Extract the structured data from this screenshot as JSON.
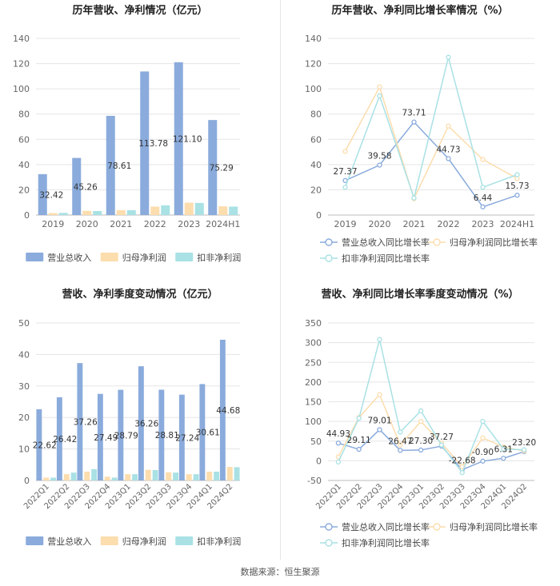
{
  "source": "数据来源：恒生聚源",
  "colors": {
    "revenue": "#8AABDC",
    "net_profit": "#FCDDAE",
    "deducted": "#A9E1E4",
    "grid": "#E5E5E5",
    "axis": "#BBBBBB",
    "tick": "#666666",
    "title": "#222222"
  },
  "chart_data": [
    {
      "type": "bar",
      "title": "历年营收、净利情况（亿元）",
      "categories": [
        "2019",
        "2020",
        "2021",
        "2022",
        "2023",
        "2024H1"
      ],
      "ylim": [
        0,
        140
      ],
      "yticks": [
        0,
        20,
        40,
        60,
        80,
        100,
        120,
        140
      ],
      "series": [
        {
          "name": "营业总收入",
          "values": [
            32.42,
            45.26,
            78.61,
            113.78,
            121.1,
            75.29
          ],
          "labels": [
            "32.42",
            "45.26",
            "78.61",
            "113.78",
            "121.10",
            "75.29"
          ]
        },
        {
          "name": "归母净利润",
          "values": [
            1.6,
            3.3,
            3.9,
            6.7,
            9.8,
            6.9
          ],
          "labels": []
        },
        {
          "name": "扣非净利润",
          "values": [
            1.7,
            3.2,
            3.8,
            7.7,
            9.6,
            6.7
          ],
          "labels": []
        }
      ]
    },
    {
      "type": "line",
      "title": "历年营收、净利同比增长率情况（%）",
      "categories": [
        "2019",
        "2020",
        "2021",
        "2022",
        "2023",
        "2024H1"
      ],
      "ylim": [
        0,
        140
      ],
      "yticks": [
        0,
        20,
        40,
        60,
        80,
        100,
        120,
        140
      ],
      "series": [
        {
          "name": "营业总收入同比增长率",
          "values": [
            27.37,
            39.58,
            73.71,
            44.73,
            6.44,
            15.73
          ],
          "labels": [
            "27.37",
            "39.58",
            "73.71",
            "44.73",
            "6.44",
            "15.73"
          ]
        },
        {
          "name": "归母净利润同比增长率",
          "values": [
            50.5,
            101.5,
            13.0,
            70.5,
            44.0,
            29.0
          ],
          "labels": []
        },
        {
          "name": "扣非净利润同比增长率",
          "values": [
            22.0,
            94.5,
            13.5,
            125.0,
            22.0,
            32.0
          ],
          "labels": []
        }
      ]
    },
    {
      "type": "bar",
      "title": "营收、净利季度变动情况（亿元）",
      "categories": [
        "2022Q1",
        "2022Q2",
        "2022Q3",
        "2022Q4",
        "2023Q1",
        "2023Q2",
        "2023Q3",
        "2023Q4",
        "2024Q1",
        "2024Q2"
      ],
      "ylim": [
        0,
        50
      ],
      "yticks": [
        0,
        10,
        20,
        30,
        40,
        50
      ],
      "series": [
        {
          "name": "营业总收入",
          "values": [
            22.62,
            26.42,
            37.26,
            27.49,
            28.79,
            36.26,
            28.81,
            27.24,
            30.61,
            44.68
          ],
          "labels": [
            "22.62",
            "26.42",
            "37.26",
            "27.49",
            "28.79",
            "36.26",
            "28.81",
            "27.24",
            "30.61",
            "44.68"
          ]
        },
        {
          "name": "归母净利润",
          "values": [
            0.9,
            2.0,
            2.8,
            1.2,
            2.0,
            3.4,
            2.6,
            2.0,
            2.8,
            4.3
          ],
          "labels": []
        },
        {
          "name": "扣非净利润",
          "values": [
            0.9,
            2.5,
            3.6,
            0.9,
            2.0,
            3.3,
            2.5,
            2.0,
            2.8,
            4.2
          ],
          "labels": []
        }
      ]
    },
    {
      "type": "line",
      "title": "营收、净利同比增长率季度变动情况（%）",
      "categories": [
        "2022Q1",
        "2022Q2",
        "2022Q3",
        "2022Q4",
        "2023Q1",
        "2023Q2",
        "2023Q3",
        "2023Q4",
        "2024Q1",
        "2024Q2"
      ],
      "ylim": [
        -50,
        350
      ],
      "yticks": [
        -50,
        0,
        50,
        100,
        150,
        200,
        250,
        300,
        350
      ],
      "series": [
        {
          "name": "营业总收入同比增长率",
          "values": [
            44.93,
            29.11,
            79.01,
            26.47,
            27.3,
            37.27,
            -22.68,
            -0.9,
            6.31,
            23.2
          ],
          "labels": [
            "44.93",
            "29.11",
            "79.01",
            "26.47",
            "27.30",
            "37.27",
            "-22.68",
            "-0.90",
            "6.31",
            "23.20"
          ]
        },
        {
          "name": "归母净利润同比增长率",
          "values": [
            10,
            110,
            168,
            40,
            100,
            45,
            -15,
            58,
            35,
            25
          ],
          "labels": []
        },
        {
          "name": "扣非净利润同比增长率",
          "values": [
            -3,
            108,
            308,
            73,
            127,
            40,
            -30,
            100,
            30,
            28
          ],
          "labels": []
        }
      ]
    }
  ]
}
